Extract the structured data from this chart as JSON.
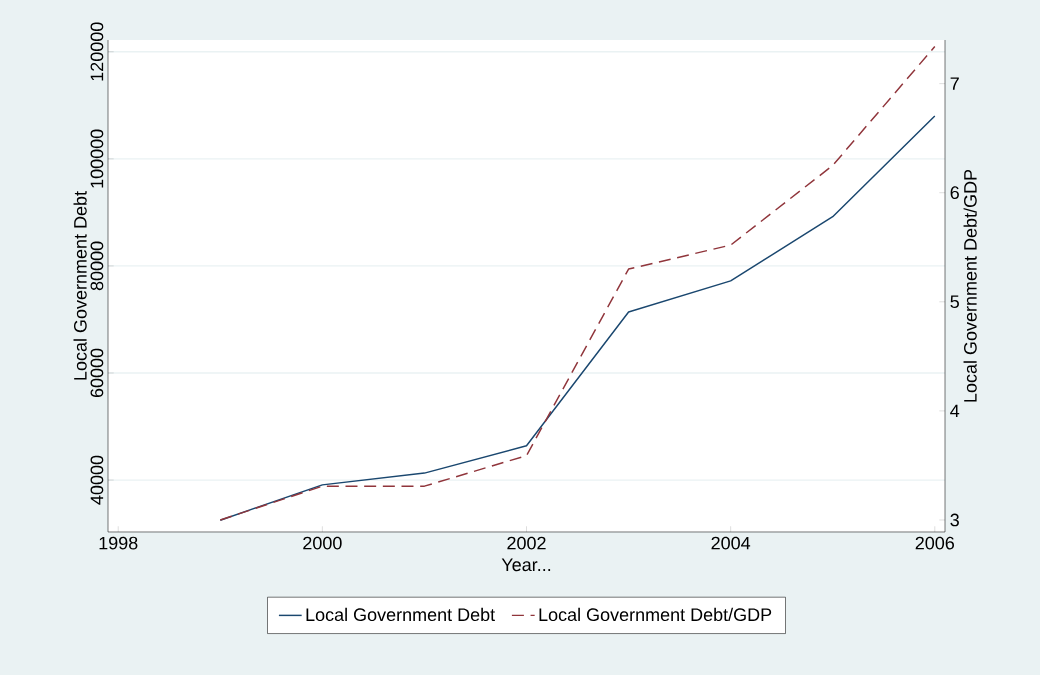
{
  "chart_data": {
    "type": "line",
    "xlabel": "Year...",
    "ylabel": "Local Government Debt",
    "y2label": "Local Government Debt/GDP",
    "x": [
      1999,
      2000,
      2001,
      2002,
      2003,
      2004,
      2005,
      2006
    ],
    "series": [
      {
        "name": "Local Government Debt",
        "color": "#1a476f",
        "line_style": "solid",
        "values": [
          32500,
          39100,
          41300,
          46400,
          71400,
          77200,
          89200,
          108000
        ]
      },
      {
        "name": "Local Government Debt/GDP",
        "color": "#90353b",
        "line_style": "dashed",
        "axis": "y2",
        "values": [
          3.0,
          3.31,
          3.31,
          3.59,
          5.3,
          5.52,
          6.25,
          7.34
        ]
      }
    ],
    "xlim": [
      1997.9,
      2006.1
    ],
    "xticks": [
      1998,
      2000,
      2002,
      2004,
      2006
    ],
    "ylim": [
      30300,
      122200
    ],
    "yticks": [
      40000,
      60000,
      80000,
      100000,
      120000
    ],
    "y2lim": [
      2.89,
      7.4
    ],
    "y2ticks": [
      3,
      4,
      5,
      6,
      7
    ],
    "grid": "y",
    "legend": "bottom"
  }
}
